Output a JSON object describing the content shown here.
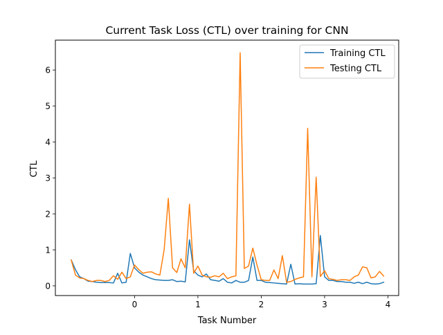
{
  "chart_data": {
    "type": "line",
    "title": "Current Task Loss (CTL) over training for CNN",
    "xlabel": "Task Number",
    "ylabel": "CTL",
    "xlim": [
      -1.25,
      4.17
    ],
    "ylim": [
      -0.27,
      6.83
    ],
    "xticks": [
      0,
      1,
      2,
      3,
      4
    ],
    "xtick_labels": [
      "0",
      "1",
      "2",
      "3",
      "4"
    ],
    "yticks": [
      0,
      1,
      2,
      3,
      4,
      5,
      6
    ],
    "ytick_labels": [
      "0",
      "1",
      "2",
      "3",
      "4",
      "5",
      "6"
    ],
    "grid": false,
    "legend_position": "top-right",
    "x": [
      -1.0,
      -0.933,
      -0.867,
      -0.8,
      -0.733,
      -0.667,
      -0.6,
      -0.533,
      -0.467,
      -0.4,
      -0.333,
      -0.267,
      -0.2,
      -0.133,
      -0.067,
      0.0,
      0.067,
      0.133,
      0.2,
      0.267,
      0.333,
      0.4,
      0.467,
      0.533,
      0.6,
      0.667,
      0.733,
      0.8,
      0.867,
      0.933,
      1.0,
      1.067,
      1.133,
      1.2,
      1.267,
      1.333,
      1.4,
      1.467,
      1.533,
      1.6,
      1.667,
      1.733,
      1.8,
      1.867,
      1.933,
      2.0,
      2.067,
      2.133,
      2.2,
      2.267,
      2.333,
      2.4,
      2.467,
      2.533,
      2.6,
      2.667,
      2.733,
      2.8,
      2.867,
      2.933,
      3.0,
      3.067,
      3.133,
      3.2,
      3.267,
      3.333,
      3.4,
      3.467,
      3.533,
      3.6,
      3.667,
      3.733,
      3.8,
      3.867,
      3.933
    ],
    "series": [
      {
        "name": "Training CTL",
        "color": "#1f77b4",
        "values": [
          0.72,
          0.45,
          0.25,
          0.2,
          0.13,
          0.12,
          0.1,
          0.09,
          0.09,
          0.09,
          0.08,
          0.35,
          0.08,
          0.1,
          0.9,
          0.5,
          0.38,
          0.3,
          0.25,
          0.2,
          0.17,
          0.16,
          0.15,
          0.15,
          0.17,
          0.12,
          0.13,
          0.11,
          1.28,
          0.42,
          0.3,
          0.25,
          0.33,
          0.17,
          0.15,
          0.13,
          0.2,
          0.1,
          0.08,
          0.15,
          0.1,
          0.1,
          0.15,
          0.8,
          0.15,
          0.15,
          0.1,
          0.09,
          0.08,
          0.07,
          0.06,
          0.05,
          0.6,
          0.05,
          0.06,
          0.05,
          0.05,
          0.05,
          0.06,
          1.4,
          0.25,
          0.15,
          0.15,
          0.12,
          0.12,
          0.1,
          0.1,
          0.07,
          0.1,
          0.06,
          0.1,
          0.06,
          0.05,
          0.06,
          0.1
        ]
      },
      {
        "name": "Testing CTL",
        "color": "#ff7f0e",
        "values": [
          0.72,
          0.3,
          0.22,
          0.2,
          0.15,
          0.12,
          0.15,
          0.15,
          0.12,
          0.15,
          0.28,
          0.18,
          0.38,
          0.2,
          0.25,
          0.58,
          0.45,
          0.35,
          0.38,
          0.39,
          0.33,
          0.3,
          1.0,
          2.43,
          0.5,
          0.37,
          0.75,
          0.5,
          2.27,
          0.35,
          0.55,
          0.3,
          0.25,
          0.24,
          0.28,
          0.25,
          0.35,
          0.2,
          0.25,
          0.28,
          6.48,
          0.48,
          0.55,
          1.05,
          0.58,
          0.17,
          0.15,
          0.15,
          0.44,
          0.2,
          0.84,
          0.1,
          0.12,
          0.18,
          0.22,
          0.25,
          4.38,
          0.25,
          3.02,
          0.26,
          0.42,
          0.2,
          0.18,
          0.15,
          0.17,
          0.17,
          0.15,
          0.25,
          0.3,
          0.53,
          0.5,
          0.22,
          0.25,
          0.4,
          0.27
        ]
      }
    ]
  }
}
